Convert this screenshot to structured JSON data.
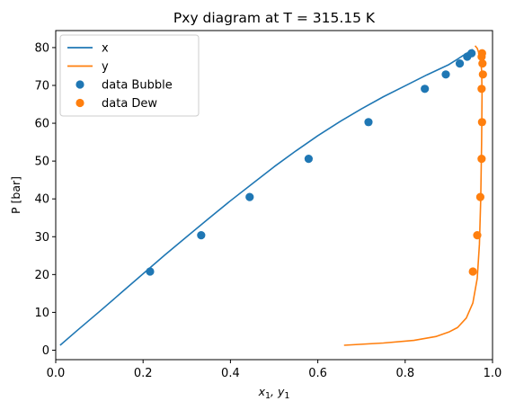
{
  "chart_data": {
    "type": "scatter",
    "title": "Pxy diagram at T = 315.15 K",
    "xlabel": "x1, y1",
    "ylabel": "P [bar]",
    "xlim": [
      0,
      1
    ],
    "ylim": [
      -2.5,
      84.5
    ],
    "xticks": [
      0.0,
      0.2,
      0.4,
      0.6,
      0.8,
      1.0
    ],
    "xtick_labels": [
      "0.0",
      "0.2",
      "0.4",
      "0.6",
      "0.8",
      "1.0"
    ],
    "yticks": [
      0,
      10,
      20,
      30,
      40,
      50,
      60,
      70,
      80
    ],
    "ytick_labels": [
      "0",
      "10",
      "20",
      "30",
      "40",
      "50",
      "60",
      "70",
      "80"
    ],
    "grid": false,
    "legend_position": "upper-left",
    "series": [
      {
        "name": "x",
        "kind": "line",
        "color": "#1f77b4",
        "points": [
          [
            0.01,
            1.3
          ],
          [
            0.05,
            5.3
          ],
          [
            0.1,
            10.2
          ],
          [
            0.15,
            15.2
          ],
          [
            0.2,
            20.2
          ],
          [
            0.25,
            25.2
          ],
          [
            0.3,
            30.0
          ],
          [
            0.35,
            34.8
          ],
          [
            0.4,
            39.5
          ],
          [
            0.45,
            44.0
          ],
          [
            0.5,
            48.5
          ],
          [
            0.55,
            52.7
          ],
          [
            0.6,
            56.7
          ],
          [
            0.65,
            60.4
          ],
          [
            0.7,
            63.8
          ],
          [
            0.75,
            67.0
          ],
          [
            0.8,
            69.9
          ],
          [
            0.85,
            72.8
          ],
          [
            0.9,
            75.5
          ],
          [
            0.93,
            77.7
          ],
          [
            0.955,
            79.5
          ]
        ]
      },
      {
        "name": "y",
        "kind": "line",
        "color": "#ff7f0e",
        "points": [
          [
            0.66,
            1.3
          ],
          [
            0.75,
            1.9
          ],
          [
            0.82,
            2.6
          ],
          [
            0.87,
            3.6
          ],
          [
            0.9,
            4.8
          ],
          [
            0.92,
            6.0
          ],
          [
            0.94,
            8.5
          ],
          [
            0.955,
            12.5
          ],
          [
            0.965,
            19.0
          ],
          [
            0.97,
            28.0
          ],
          [
            0.973,
            40.0
          ],
          [
            0.975,
            55.0
          ],
          [
            0.976,
            68.0
          ],
          [
            0.975,
            74.0
          ],
          [
            0.972,
            77.5
          ],
          [
            0.965,
            79.8
          ],
          [
            0.96,
            80.5
          ]
        ]
      },
      {
        "name": "data Bubble",
        "kind": "scatter",
        "color": "#1f77b4",
        "points": [
          [
            0.216,
            20.8
          ],
          [
            0.333,
            30.4
          ],
          [
            0.444,
            40.5
          ],
          [
            0.579,
            50.6
          ],
          [
            0.716,
            60.3
          ],
          [
            0.845,
            69.1
          ],
          [
            0.893,
            72.9
          ],
          [
            0.925,
            75.8
          ],
          [
            0.942,
            77.6
          ],
          [
            0.952,
            78.5
          ]
        ]
      },
      {
        "name": "data Dew",
        "kind": "scatter",
        "color": "#ff7f0e",
        "points": [
          [
            0.955,
            20.8
          ],
          [
            0.965,
            30.4
          ],
          [
            0.972,
            40.5
          ],
          [
            0.975,
            50.6
          ],
          [
            0.976,
            60.3
          ],
          [
            0.975,
            69.1
          ],
          [
            0.978,
            72.9
          ],
          [
            0.977,
            75.8
          ],
          [
            0.975,
            77.6
          ],
          [
            0.976,
            78.5
          ]
        ]
      }
    ]
  }
}
